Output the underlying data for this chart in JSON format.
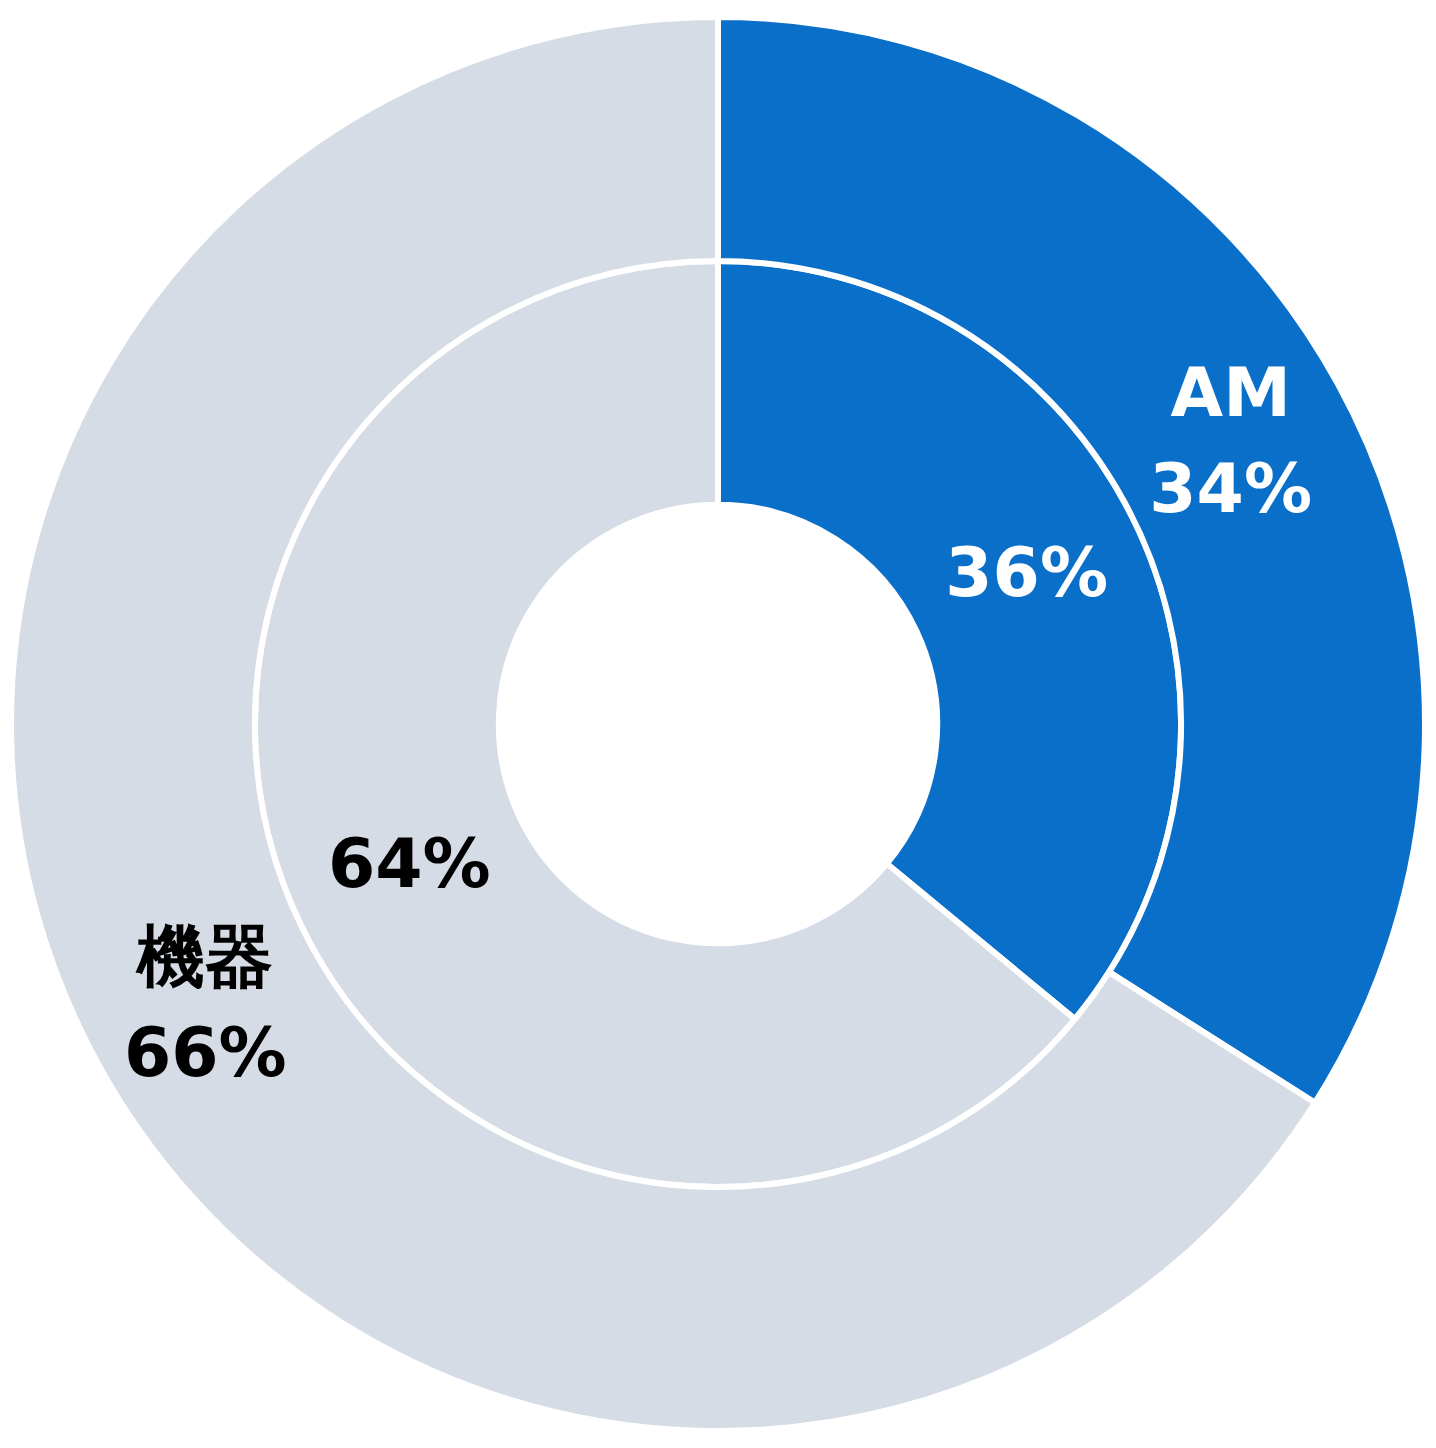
{
  "chart_data": {
    "type": "donut",
    "categories": [
      "AM",
      "機器"
    ],
    "colors": [
      "#0a6fc9",
      "#d6dce5"
    ],
    "series": [
      {
        "values": [
          34,
          66
        ],
        "value_labels": [
          "34%",
          "66%"
        ]
      },
      {
        "values": [
          36,
          64
        ],
        "value_labels": [
          "36%",
          "64%"
        ]
      }
    ],
    "legend": false
  }
}
